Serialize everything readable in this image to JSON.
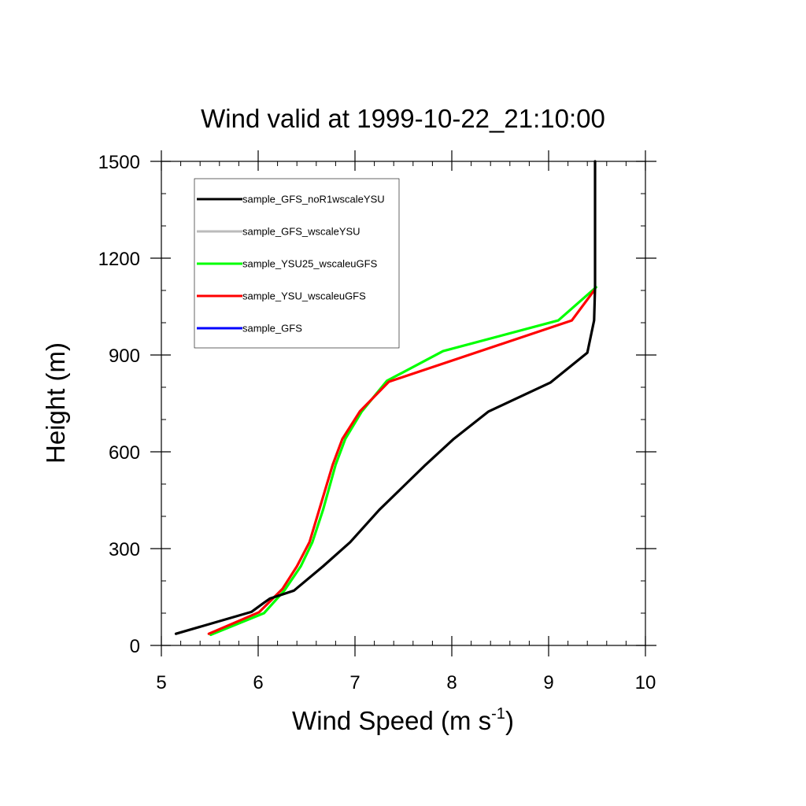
{
  "chart_data": {
    "type": "line",
    "title": "Wind valid at 1999-10-22_21:10:00",
    "xlabel": "Wind Speed (m s",
    "xlabel_sup": "-1",
    "xlabel_end": ")",
    "ylabel": "Height (m)",
    "xlim": [
      5,
      10
    ],
    "ylim": [
      0,
      1500
    ],
    "xticks": [
      5,
      6,
      7,
      8,
      9,
      10
    ],
    "yticks": [
      0,
      300,
      600,
      900,
      1200,
      1500
    ],
    "xtick_labels": [
      "5",
      "6",
      "7",
      "8",
      "9",
      "10"
    ],
    "ytick_labels": [
      "0",
      "300",
      "600",
      "900",
      "1200",
      "1500"
    ],
    "grid": false,
    "legend_position": "top-left",
    "series": [
      {
        "name": "sample_GFS_noR1wscaleYSU",
        "color": "#000000",
        "x": [
          5.15,
          5.93,
          6.05,
          6.12,
          6.37,
          6.67,
          6.95,
          7.25,
          7.73,
          8.02,
          8.38,
          9.02,
          9.4,
          9.47,
          9.48,
          9.48
        ],
        "y": [
          36,
          104,
          130,
          145,
          170,
          245,
          320,
          420,
          560,
          640,
          725,
          815,
          907,
          1007,
          1110,
          1500
        ]
      },
      {
        "name": "sample_GFS_wscaleYSU",
        "color": "#bbbbbb",
        "x": [],
        "y": []
      },
      {
        "name": "sample_YSU25_wscaleuGFS",
        "color": "#00ff00",
        "x": [
          5.51,
          6.06,
          6.27,
          6.44,
          6.56,
          6.67,
          6.8,
          6.9,
          7.07,
          7.33,
          7.91,
          9.1,
          9.49
        ],
        "y": [
          33,
          100,
          170,
          245,
          320,
          420,
          560,
          640,
          725,
          820,
          912,
          1007,
          1110
        ]
      },
      {
        "name": "sample_YSU_wscaleuGFS",
        "color": "#ff0000",
        "x": [
          5.49,
          6.01,
          6.25,
          6.4,
          6.53,
          6.63,
          6.77,
          6.87,
          7.05,
          7.35,
          9.24,
          9.47
        ],
        "y": [
          36,
          103,
          175,
          245,
          320,
          420,
          560,
          640,
          725,
          817,
          1007,
          1100
        ]
      },
      {
        "name": "sample_GFS",
        "color": "#0000ff",
        "x": [],
        "y": []
      }
    ]
  }
}
